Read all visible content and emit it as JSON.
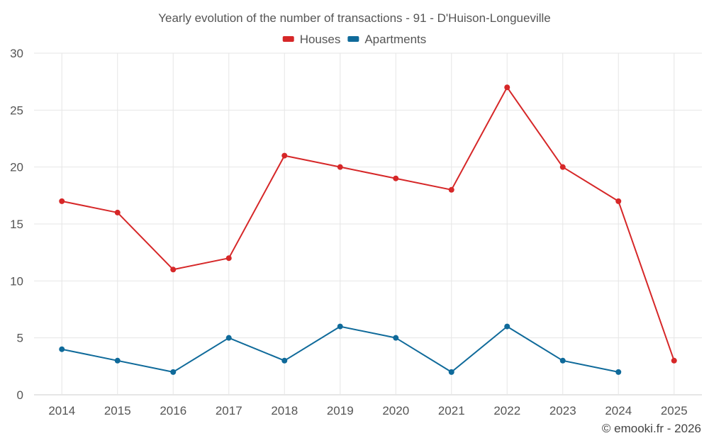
{
  "chart_data": {
    "type": "line",
    "title": "Yearly evolution of the number of transactions - 91 - D'Huison-Longueville",
    "xlabel": "",
    "ylabel": "",
    "categories": [
      "2014",
      "2015",
      "2016",
      "2017",
      "2018",
      "2019",
      "2020",
      "2021",
      "2022",
      "2023",
      "2024",
      "2025"
    ],
    "ylim": [
      0,
      30
    ],
    "yticks": [
      0,
      5,
      10,
      15,
      20,
      25,
      30
    ],
    "grid": true,
    "legend_position": "top-center",
    "series": [
      {
        "name": "Houses",
        "color": "#d62728",
        "values": [
          17,
          16,
          11,
          12,
          21,
          20,
          19,
          18,
          27,
          20,
          17,
          3
        ]
      },
      {
        "name": "Apartments",
        "color": "#0f6a9a",
        "values": [
          4,
          3,
          2,
          5,
          3,
          6,
          5,
          2,
          6,
          3,
          2,
          null
        ]
      }
    ]
  },
  "credit": "© emooki.fr - 2026"
}
